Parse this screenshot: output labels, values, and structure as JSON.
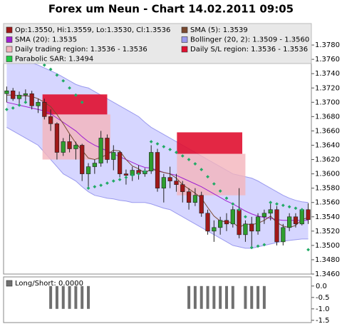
{
  "chart_data": {
    "type": "candlestick",
    "title": "Forex um Neun - Chart 14.02.2011 09:05",
    "ylim": [
      1.346,
      1.381
    ],
    "yticks": [
      {
        "value": 1.346,
        "label": "1.3460"
      },
      {
        "value": 1.348,
        "label": "1.3480"
      },
      {
        "value": 1.35,
        "label": "1.3500"
      },
      {
        "value": 1.352,
        "label": "1.3520"
      },
      {
        "value": 1.354,
        "label": "1.3540"
      },
      {
        "value": 1.356,
        "label": "1.3560"
      },
      {
        "value": 1.358,
        "label": "1.3580"
      },
      {
        "value": 1.36,
        "label": "1.3600"
      },
      {
        "value": 1.362,
        "label": "1.3620"
      },
      {
        "value": 1.364,
        "label": "1.3640"
      },
      {
        "value": 1.366,
        "label": "1.3660"
      },
      {
        "value": 1.368,
        "label": "1.3680"
      },
      {
        "value": 1.37,
        "label": "1.3700"
      },
      {
        "value": 1.372,
        "label": "1.3720"
      },
      {
        "value": 1.374,
        "label": "1.3740"
      },
      {
        "value": 1.376,
        "label": "1.3760"
      },
      {
        "value": 1.378,
        "label": "1.3780"
      }
    ],
    "up_color": "#2e9e2e",
    "down_color": "#a01818",
    "open": [
      1.3712,
      1.3716,
      1.3705,
      1.371,
      1.3712,
      1.3695,
      1.37,
      1.368,
      1.367,
      1.363,
      1.3645,
      1.3635,
      1.364,
      1.36,
      1.361,
      1.3615,
      1.365,
      1.362,
      1.363,
      1.36,
      1.3598,
      1.3605,
      1.36,
      1.3604,
      1.363,
      1.358,
      1.3595,
      1.359,
      1.3585,
      1.3575,
      1.356,
      1.357,
      1.3545,
      1.352,
      1.3525,
      1.3535,
      1.353,
      1.355,
      1.3515,
      1.353,
      1.352,
      1.354,
      1.3545,
      1.355,
      1.3505,
      1.3525,
      1.354,
      1.353,
      1.355
    ],
    "high": [
      1.3722,
      1.372,
      1.3715,
      1.3718,
      1.3716,
      1.3705,
      1.3705,
      1.369,
      1.3672,
      1.365,
      1.3655,
      1.3645,
      1.3642,
      1.3615,
      1.362,
      1.366,
      1.3655,
      1.364,
      1.3632,
      1.3606,
      1.361,
      1.3612,
      1.3608,
      1.364,
      1.3635,
      1.36,
      1.361,
      1.36,
      1.359,
      1.358,
      1.358,
      1.3575,
      1.355,
      1.3535,
      1.354,
      1.3545,
      1.3555,
      1.358,
      1.3535,
      1.354,
      1.3545,
      1.355,
      1.356,
      1.3555,
      1.353,
      1.3545,
      1.3545,
      1.3552,
      1.3559
    ],
    "low": [
      1.37,
      1.3702,
      1.3695,
      1.37,
      1.369,
      1.3685,
      1.3676,
      1.366,
      1.362,
      1.3625,
      1.363,
      1.362,
      1.359,
      1.358,
      1.36,
      1.361,
      1.3615,
      1.3605,
      1.3595,
      1.3585,
      1.359,
      1.3592,
      1.3596,
      1.36,
      1.3575,
      1.356,
      1.358,
      1.3575,
      1.356,
      1.355,
      1.3555,
      1.354,
      1.3515,
      1.3505,
      1.3515,
      1.352,
      1.3525,
      1.351,
      1.3505,
      1.3495,
      1.3515,
      1.353,
      1.3535,
      1.35,
      1.35,
      1.352,
      1.3525,
      1.3528,
      1.353
    ],
    "close": [
      1.3716,
      1.3705,
      1.371,
      1.3712,
      1.3695,
      1.37,
      1.368,
      1.367,
      1.363,
      1.3645,
      1.3635,
      1.364,
      1.36,
      1.361,
      1.3615,
      1.365,
      1.362,
      1.363,
      1.36,
      1.3598,
      1.3605,
      1.36,
      1.3604,
      1.363,
      1.358,
      1.3595,
      1.359,
      1.3585,
      1.3575,
      1.356,
      1.357,
      1.3545,
      1.352,
      1.3525,
      1.3535,
      1.353,
      1.355,
      1.3515,
      1.353,
      1.352,
      1.354,
      1.3545,
      1.355,
      1.3505,
      1.3525,
      1.354,
      1.353,
      1.355,
      1.3536
    ],
    "bollinger": {
      "color": "#c8c8ff",
      "edge": "#9a9aee",
      "upper": [
        1.3765,
        1.3762,
        1.376,
        1.3757,
        1.3755,
        1.3752,
        1.3748,
        1.3744,
        1.374,
        1.3735,
        1.373,
        1.3725,
        1.3722,
        1.372,
        1.3715,
        1.371,
        1.3705,
        1.37,
        1.3695,
        1.369,
        1.3685,
        1.368,
        1.3672,
        1.3665,
        1.366,
        1.3655,
        1.365,
        1.3645,
        1.364,
        1.3635,
        1.363,
        1.3625,
        1.362,
        1.3615,
        1.361,
        1.3605,
        1.36,
        1.3598,
        1.3596,
        1.3594,
        1.359,
        1.3585,
        1.358,
        1.3575,
        1.357,
        1.3566,
        1.3563,
        1.3561,
        1.356
      ],
      "lower": [
        1.3665,
        1.366,
        1.3655,
        1.365,
        1.3645,
        1.364,
        1.363,
        1.362,
        1.361,
        1.36,
        1.3595,
        1.359,
        1.3582,
        1.3575,
        1.357,
        1.3568,
        1.3566,
        1.3565,
        1.3563,
        1.3562,
        1.356,
        1.356,
        1.356,
        1.3558,
        1.3555,
        1.3552,
        1.355,
        1.3545,
        1.354,
        1.3535,
        1.353,
        1.3525,
        1.352,
        1.3515,
        1.351,
        1.3505,
        1.35,
        1.3498,
        1.3496,
        1.3496,
        1.3498,
        1.35,
        1.3502,
        1.3504,
        1.3506,
        1.3507,
        1.3508,
        1.3509,
        1.3509
      ]
    },
    "sl_regions": {
      "color": "#e01030",
      "items": [
        {
          "from": 6.2,
          "to": 16.5,
          "top": 1.3711,
          "bottom": 1.3683
        },
        {
          "from": 27.6,
          "to": 38,
          "top": 1.3658,
          "bottom": 1.3628
        }
      ]
    },
    "trading_regions": {
      "color": "#f4b4bc",
      "items": [
        {
          "from": 6.2,
          "to": 17,
          "top": 1.3683,
          "bottom": 1.362
        },
        {
          "from": 27.6,
          "to": 38.5,
          "top": 1.3628,
          "bottom": 1.357
        }
      ]
    },
    "sma5": {
      "color": "#7a4a30",
      "values": [
        1.371,
        1.371,
        1.3709,
        1.3709,
        1.3708,
        1.3705,
        1.37,
        1.3694,
        1.3683,
        1.367,
        1.3656,
        1.3643,
        1.3633,
        1.3622,
        1.362,
        1.3623,
        1.3627,
        1.3633,
        1.3632,
        1.362,
        1.3611,
        1.3607,
        1.3601,
        1.3607,
        1.3604,
        1.3602,
        1.36,
        1.3594,
        1.3585,
        1.3579,
        1.3573,
        1.3566,
        1.3553,
        1.3541,
        1.3534,
        1.3533,
        1.3532,
        1.3525,
        1.353,
        1.3529,
        1.3531,
        1.3535,
        1.3541,
        1.3532,
        1.3527,
        1.3525,
        1.3528,
        1.3536,
        1.3539
      ]
    },
    "sma20": {
      "color": "#a020d0",
      "values": [
        1.37,
        1.3698,
        1.3696,
        1.3694,
        1.3692,
        1.369,
        1.3688,
        1.3684,
        1.3678,
        1.3672,
        1.3666,
        1.366,
        1.3652,
        1.3645,
        1.364,
        1.3636,
        1.3632,
        1.3628,
        1.3624,
        1.362,
        1.3616,
        1.3612,
        1.3609,
        1.3608,
        1.3605,
        1.3602,
        1.36,
        1.3598,
        1.3594,
        1.359,
        1.3586,
        1.3582,
        1.3577,
        1.3572,
        1.3567,
        1.3562,
        1.3558,
        1.3553,
        1.3548,
        1.3544,
        1.3541,
        1.3539,
        1.3538,
        1.3536,
        1.3535,
        1.3535,
        1.3535,
        1.3535,
        1.3535
      ]
    },
    "sar": {
      "color": "#22aa66",
      "values": [
        1.369,
        1.3692,
        1.3696,
        1.37,
        1.376,
        1.3756,
        1.3752,
        1.3746,
        1.3738,
        1.373,
        1.372,
        1.371,
        1.37,
        1.358,
        1.3582,
        1.3584,
        1.3587,
        1.359,
        1.3592,
        1.3595,
        1.3598,
        1.36,
        1.3603,
        1.3645,
        1.3642,
        1.3638,
        1.3634,
        1.363,
        1.3625,
        1.362,
        1.3614,
        1.3606,
        1.3596,
        1.3586,
        1.3576,
        1.3566,
        1.3558,
        1.355,
        1.354,
        1.3497,
        1.3499,
        1.3501,
        1.356,
        1.3558,
        1.3556,
        1.3554,
        1.3552,
        1.355,
        1.3494
      ]
    },
    "legend": [
      {
        "label": "Op:1.3550, Hi:1.3559, Lo:1.3530, Cl:1.3536",
        "color": "#a01818"
      },
      {
        "label": "SMA (5): 1.3539",
        "color": "#7a4a30"
      },
      {
        "label": "SMA (20): 1.3535",
        "color": "#a020d0"
      },
      {
        "label": "Bollinger (20, 2): 1.3509 - 1.3560",
        "color": "#9a9aee"
      },
      {
        "label": "Daily trading region: 1.3536 - 1.3536",
        "color": "#f4b4bc"
      },
      {
        "label": "Daily S/L region: 1.3536 - 1.3536",
        "color": "#e01030"
      },
      {
        "label": "Parabolic SAR: 1.3494",
        "color": "#22cc44"
      }
    ],
    "indicator": {
      "label": "Long/Short: 0.0000",
      "color": "#707070",
      "ylim": [
        -1.6,
        0.4
      ],
      "yticks": [
        {
          "value": 0,
          "label": "0.0"
        },
        -0.5,
        {
          "value": -1,
          "label": "-1.0"
        },
        -1.5
      ],
      "values": [
        0,
        0,
        0,
        0,
        0,
        0,
        0,
        -1,
        -1,
        -1,
        -1,
        -1,
        -1,
        -1,
        0,
        0,
        0,
        0,
        0,
        0,
        0,
        0,
        0,
        0,
        0,
        0,
        0,
        0,
        0,
        -1,
        -1,
        -1,
        -1,
        -1,
        -1,
        -1,
        -1,
        0,
        -1,
        -1,
        -1,
        -1,
        0,
        0,
        0,
        0,
        0,
        0,
        0
      ]
    }
  }
}
